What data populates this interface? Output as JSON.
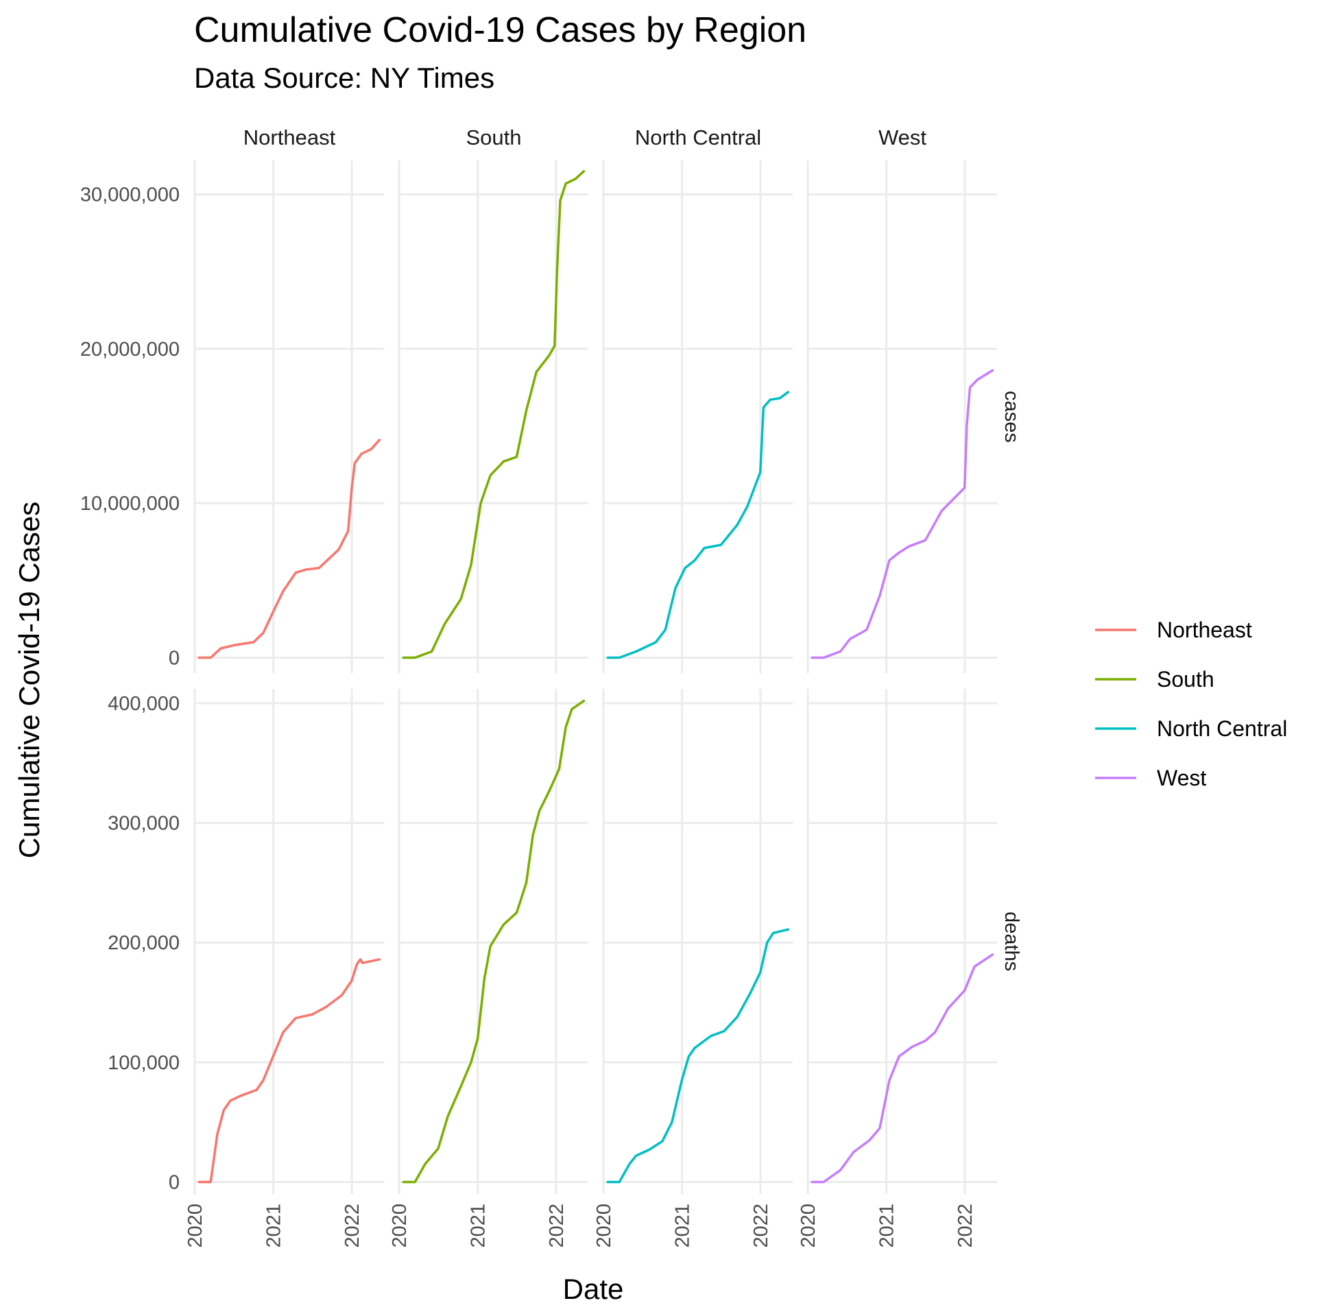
{
  "chart_data": {
    "type": "line",
    "title": "Cumulative Covid-19 Cases by Region",
    "subtitle": "Data Source: NY Times",
    "xlabel": "Date",
    "ylabel": "Cumulative Covid-19 Cases",
    "facet_columns": [
      "Northeast",
      "South",
      "North Central",
      "West"
    ],
    "facet_rows": [
      "cases",
      "deaths"
    ],
    "x_ticks": [
      "2020",
      "2021",
      "2022"
    ],
    "xlim": [
      "2020-01-01",
      "2022-05-31"
    ],
    "grid": true,
    "legend_position": "right",
    "legend": [
      {
        "name": "Northeast",
        "color": "#F8766D"
      },
      {
        "name": "South",
        "color": "#7CAE00"
      },
      {
        "name": "North Central",
        "color": "#00BFC4"
      },
      {
        "name": "West",
        "color": "#C77CFF"
      }
    ],
    "panels": {
      "cases": {
        "ylim": [
          -1000000,
          32200000
        ],
        "y_ticks": [
          0,
          10000000,
          20000000,
          30000000
        ],
        "y_tick_labels": [
          "0",
          "10,000,000",
          "20,000,000",
          "30,000,000"
        ],
        "series": [
          {
            "name": "Northeast",
            "points": [
              [
                "2020-01-21",
                0
              ],
              [
                "2020-03-15",
                0
              ],
              [
                "2020-05-01",
                600000
              ],
              [
                "2020-07-01",
                800000
              ],
              [
                "2020-10-01",
                1000000
              ],
              [
                "2020-11-15",
                1600000
              ],
              [
                "2021-01-01",
                3000000
              ],
              [
                "2021-02-15",
                4300000
              ],
              [
                "2021-04-15",
                5500000
              ],
              [
                "2021-06-01",
                5700000
              ],
              [
                "2021-08-01",
                5800000
              ],
              [
                "2021-11-01",
                7000000
              ],
              [
                "2021-12-15",
                8200000
              ],
              [
                "2022-01-01",
                11000000
              ],
              [
                "2022-01-15",
                12600000
              ],
              [
                "2022-02-15",
                13200000
              ],
              [
                "2022-04-01",
                13500000
              ],
              [
                "2022-05-10",
                14100000
              ]
            ]
          },
          {
            "name": "South",
            "points": [
              [
                "2020-01-21",
                0
              ],
              [
                "2020-03-15",
                0
              ],
              [
                "2020-06-01",
                400000
              ],
              [
                "2020-08-01",
                2200000
              ],
              [
                "2020-10-15",
                3800000
              ],
              [
                "2020-12-01",
                6000000
              ],
              [
                "2021-01-15",
                10000000
              ],
              [
                "2021-03-01",
                11800000
              ],
              [
                "2021-05-01",
                12700000
              ],
              [
                "2021-07-01",
                13000000
              ],
              [
                "2021-08-15",
                16000000
              ],
              [
                "2021-10-01",
                18500000
              ],
              [
                "2021-12-01",
                19600000
              ],
              [
                "2021-12-25",
                20200000
              ],
              [
                "2022-01-05",
                25000000
              ],
              [
                "2022-01-20",
                29600000
              ],
              [
                "2022-02-15",
                30700000
              ],
              [
                "2022-04-01",
                31000000
              ],
              [
                "2022-05-10",
                31500000
              ]
            ]
          },
          {
            "name": "North Central",
            "points": [
              [
                "2020-01-21",
                0
              ],
              [
                "2020-03-15",
                0
              ],
              [
                "2020-06-01",
                400000
              ],
              [
                "2020-09-01",
                1000000
              ],
              [
                "2020-10-15",
                1800000
              ],
              [
                "2020-12-01",
                4500000
              ],
              [
                "2021-01-15",
                5800000
              ],
              [
                "2021-03-01",
                6300000
              ],
              [
                "2021-04-15",
                7100000
              ],
              [
                "2021-07-01",
                7300000
              ],
              [
                "2021-09-15",
                8600000
              ],
              [
                "2021-11-01",
                9800000
              ],
              [
                "2021-12-31",
                12000000
              ],
              [
                "2022-01-15",
                16200000
              ],
              [
                "2022-02-15",
                16700000
              ],
              [
                "2022-04-01",
                16800000
              ],
              [
                "2022-05-10",
                17200000
              ]
            ]
          },
          {
            "name": "West",
            "points": [
              [
                "2020-01-21",
                0
              ],
              [
                "2020-03-15",
                0
              ],
              [
                "2020-06-01",
                400000
              ],
              [
                "2020-07-15",
                1200000
              ],
              [
                "2020-10-01",
                1800000
              ],
              [
                "2020-12-01",
                4000000
              ],
              [
                "2021-01-15",
                6300000
              ],
              [
                "2021-03-01",
                6800000
              ],
              [
                "2021-04-15",
                7200000
              ],
              [
                "2021-07-01",
                7600000
              ],
              [
                "2021-09-15",
                9500000
              ],
              [
                "2021-12-31",
                11000000
              ],
              [
                "2022-01-10",
                15000000
              ],
              [
                "2022-01-25",
                17500000
              ],
              [
                "2022-03-01",
                18000000
              ],
              [
                "2022-05-10",
                18600000
              ]
            ]
          }
        ]
      },
      "deaths": {
        "ylim": [
          -10000,
          412000
        ],
        "y_ticks": [
          0,
          100000,
          200000,
          300000,
          400000
        ],
        "y_tick_labels": [
          "0",
          "100,000",
          "200,000",
          "300,000",
          "400,000"
        ],
        "series": [
          {
            "name": "Northeast",
            "points": [
              [
                "2020-01-21",
                0
              ],
              [
                "2020-03-15",
                0
              ],
              [
                "2020-04-15",
                40000
              ],
              [
                "2020-05-15",
                60000
              ],
              [
                "2020-06-15",
                68000
              ],
              [
                "2020-08-01",
                72000
              ],
              [
                "2020-10-15",
                77000
              ],
              [
                "2020-11-15",
                85000
              ],
              [
                "2020-12-31",
                105000
              ],
              [
                "2021-02-15",
                125000
              ],
              [
                "2021-04-15",
                137000
              ],
              [
                "2021-07-01",
                140000
              ],
              [
                "2021-09-01",
                146000
              ],
              [
                "2021-11-15",
                156000
              ],
              [
                "2021-12-31",
                168000
              ],
              [
                "2022-01-25",
                182000
              ],
              [
                "2022-02-10",
                186000
              ],
              [
                "2022-02-20",
                183000
              ],
              [
                "2022-05-10",
                186000
              ]
            ]
          },
          {
            "name": "South",
            "points": [
              [
                "2020-01-21",
                0
              ],
              [
                "2020-03-15",
                0
              ],
              [
                "2020-05-01",
                15000
              ],
              [
                "2020-07-01",
                28000
              ],
              [
                "2020-08-15",
                55000
              ],
              [
                "2020-10-15",
                80000
              ],
              [
                "2020-12-01",
                100000
              ],
              [
                "2021-01-01",
                120000
              ],
              [
                "2021-02-01",
                170000
              ],
              [
                "2021-03-01",
                197000
              ],
              [
                "2021-05-01",
                215000
              ],
              [
                "2021-07-01",
                225000
              ],
              [
                "2021-08-15",
                250000
              ],
              [
                "2021-09-15",
                290000
              ],
              [
                "2021-10-15",
                310000
              ],
              [
                "2021-12-01",
                327000
              ],
              [
                "2022-01-15",
                345000
              ],
              [
                "2022-02-15",
                380000
              ],
              [
                "2022-03-15",
                395000
              ],
              [
                "2022-05-10",
                402000
              ]
            ]
          },
          {
            "name": "North Central",
            "points": [
              [
                "2020-01-21",
                0
              ],
              [
                "2020-03-15",
                0
              ],
              [
                "2020-05-01",
                15000
              ],
              [
                "2020-06-01",
                22000
              ],
              [
                "2020-08-01",
                27000
              ],
              [
                "2020-10-01",
                34000
              ],
              [
                "2020-11-15",
                50000
              ],
              [
                "2020-12-31",
                85000
              ],
              [
                "2021-02-01",
                105000
              ],
              [
                "2021-03-01",
                112000
              ],
              [
                "2021-05-15",
                122000
              ],
              [
                "2021-07-15",
                126000
              ],
              [
                "2021-09-15",
                138000
              ],
              [
                "2021-11-15",
                158000
              ],
              [
                "2021-12-31",
                175000
              ],
              [
                "2022-02-01",
                200000
              ],
              [
                "2022-03-01",
                208000
              ],
              [
                "2022-05-10",
                211000
              ]
            ]
          },
          {
            "name": "West",
            "points": [
              [
                "2020-01-21",
                0
              ],
              [
                "2020-03-15",
                0
              ],
              [
                "2020-06-01",
                10000
              ],
              [
                "2020-08-01",
                25000
              ],
              [
                "2020-10-15",
                35000
              ],
              [
                "2020-12-01",
                45000
              ],
              [
                "2021-01-15",
                85000
              ],
              [
                "2021-03-01",
                105000
              ],
              [
                "2021-05-01",
                113000
              ],
              [
                "2021-07-01",
                118000
              ],
              [
                "2021-08-15",
                125000
              ],
              [
                "2021-10-15",
                145000
              ],
              [
                "2021-12-31",
                160000
              ],
              [
                "2022-02-15",
                180000
              ],
              [
                "2022-05-10",
                190000
              ]
            ]
          }
        ]
      }
    }
  }
}
